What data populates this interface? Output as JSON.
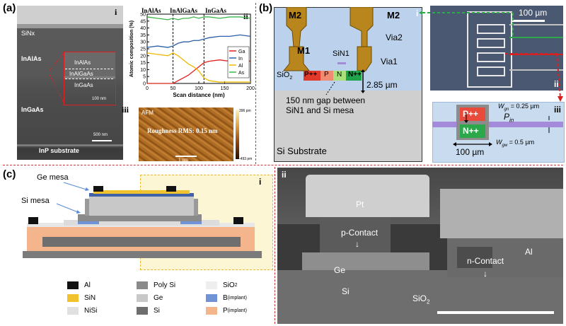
{
  "panels": {
    "a": {
      "label": "(a)",
      "tem": {
        "sub": "i",
        "layers": {
          "sinx": "SiNx",
          "inalas": "InAlAs",
          "inalas_inset": "InAlAs",
          "inalgaas_inset": "InAlGaAs",
          "ingaas_inset": "InGaAs",
          "ingaas": "InGaAs",
          "inp": "InP substrate"
        },
        "scale_inset": "100 nm",
        "scale_main": "500 nm"
      },
      "chart": {
        "sub": "ii",
        "regions": [
          "InAlAs",
          "InAlGaAs",
          "InGaAs"
        ]
      },
      "afm": {
        "sub": "iii",
        "title": "AFM",
        "roughness": "Roughness RMS: 0.15 nm",
        "scale": "1 um",
        "cbar_max": "396 pm",
        "cbar_min": "-493 pm"
      }
    },
    "b": {
      "label": "(b)",
      "cross": {
        "sub": "i",
        "m2_left": "M2",
        "m2_right": "M2",
        "m1": "M1",
        "sin1": "SiN1",
        "via1": "Via1",
        "via2": "Via2",
        "sio2": "SiO",
        "sio2_sub": "2",
        "pp": "P++",
        "p": "P",
        "n": "N",
        "nn": "N++",
        "thickness": "2.85 µm",
        "gap_note_line1": "150 nm gap between",
        "gap_note_line2": "SiN1 and Si mesa",
        "substrate": "Si Substrate"
      },
      "micro": {
        "sub": "ii",
        "scale": "100 µm"
      },
      "wg": {
        "sub": "iii",
        "pp": "P++",
        "nn": "N++",
        "pin": "P",
        "pin_sub": "in",
        "wgn": "W",
        "wgn_sub": "gn",
        "wgn_val": " = 0.25 µm",
        "wgw": "W",
        "wgw_sub": "gw",
        "wgw_val": " = 0.5 µm",
        "length": "100 µm"
      }
    },
    "c": {
      "label": "(c)",
      "cross": {
        "sub": "i",
        "ge_mesa": "Ge mesa",
        "si_mesa": "Si mesa"
      },
      "legend": [
        {
          "label": "Al",
          "color": "#111111"
        },
        {
          "label": "SiN",
          "color": "#f2c12e"
        },
        {
          "label": "NiSi",
          "color": "#e0e0e0"
        },
        {
          "label": "Poly Si",
          "color": "#8a8a8a"
        },
        {
          "label": "Ge",
          "color": "#c8c8c8"
        },
        {
          "label": "Si",
          "color": "#6e6e6e"
        },
        {
          "label": "SiO",
          "sub": "2",
          "color": "#eeeeee"
        },
        {
          "label": "B",
          "sub": "(implant)",
          "color": "#6f93d6"
        },
        {
          "label": "P",
          "sub": "(implant)",
          "color": "#f4b48c"
        }
      ],
      "sem": {
        "sub": "ii",
        "pt": "Pt",
        "p_contact": "p-Contact",
        "ge": "Ge",
        "si": "Si",
        "sio2": "SiO",
        "sio2_sub": "2",
        "n_contact": "n-Contact",
        "al": "Al"
      }
    }
  },
  "chart_data": {
    "type": "line",
    "xlabel": "Scan distance (nm)",
    "ylabel": "Atomic composition (%)",
    "xlim": [
      0,
      200
    ],
    "ylim": [
      0,
      50
    ],
    "xticks": [
      0,
      50,
      100,
      150,
      200
    ],
    "yticks": [
      0,
      5,
      10,
      15,
      20,
      25,
      30,
      35,
      40,
      45,
      50
    ],
    "boundaries": [
      50,
      110
    ],
    "legend_position": "right",
    "series": [
      {
        "name": "Ga",
        "color": "#e0201b",
        "x": [
          0,
          20,
          40,
          50,
          60,
          70,
          80,
          90,
          100,
          110,
          120,
          140,
          160,
          180,
          200
        ],
        "y": [
          0,
          0,
          0,
          0,
          2,
          4,
          6,
          9,
          12,
          15,
          16,
          17,
          16,
          17,
          16
        ]
      },
      {
        "name": "In",
        "color": "#2b5fa8",
        "x": [
          0,
          20,
          40,
          50,
          60,
          70,
          80,
          90,
          100,
          110,
          120,
          140,
          160,
          180,
          200
        ],
        "y": [
          26,
          27,
          26,
          27,
          29,
          30,
          30,
          31,
          31,
          32,
          33,
          34,
          34,
          35,
          34
        ]
      },
      {
        "name": "Al",
        "color": "#f0b800",
        "x": [
          0,
          20,
          40,
          50,
          60,
          70,
          80,
          90,
          100,
          110,
          120,
          140,
          160,
          180,
          200
        ],
        "y": [
          22,
          21,
          20,
          22,
          20,
          17,
          14,
          12,
          9,
          4,
          2,
          1,
          1,
          1,
          1
        ]
      },
      {
        "name": "As",
        "color": "#3cb54a",
        "x": [
          0,
          20,
          40,
          50,
          60,
          70,
          80,
          90,
          100,
          110,
          120,
          140,
          160,
          180,
          200
        ],
        "y": [
          48,
          47,
          46,
          47,
          46,
          47,
          47,
          48,
          47,
          48,
          48,
          47,
          48,
          48,
          47
        ]
      }
    ]
  }
}
